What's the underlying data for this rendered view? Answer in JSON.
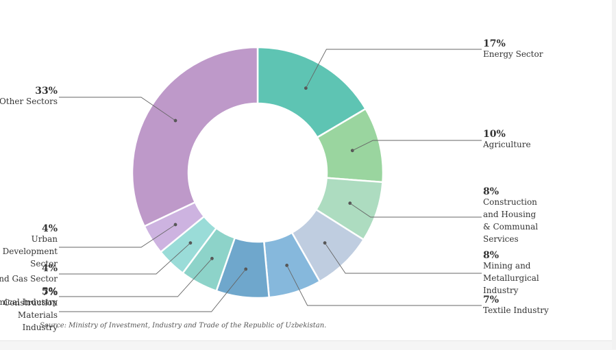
{
  "chart_data": {
    "type": "pie",
    "donut": true,
    "source": "Source: Ministry of Investment, Industry and Trade of the Republic of Uzbekistan.",
    "slices": [
      {
        "label": "Energy Sector",
        "value": 17,
        "pct_label": "17%",
        "color": "#5ec4b3"
      },
      {
        "label": "Agriculture",
        "value": 10,
        "pct_label": "10%",
        "color": "#9ad59f"
      },
      {
        "label": "Construction and Housing & Communal Services",
        "value": 8,
        "pct_label": "8%",
        "color": "#addcc0"
      },
      {
        "label": "Mining and Metallurgical Industry",
        "value": 8,
        "pct_label": "8%",
        "color": "#bfcde0"
      },
      {
        "label": "Textile Industry",
        "value": 7,
        "pct_label": "7%",
        "color": "#86b8dc"
      },
      {
        "label": "Construction Materials Industry",
        "value": 7,
        "pct_label": "7%",
        "color": "#6fa7cc"
      },
      {
        "label": "Chemical Industry",
        "value": 5,
        "pct_label": "5%",
        "color": "#8dd3c9"
      },
      {
        "label": "Oil and Gas Sector",
        "value": 4,
        "pct_label": "4%",
        "color": "#9adcd8"
      },
      {
        "label": "Urban Development Sector",
        "value": 4,
        "pct_label": "4%",
        "color": "#cdb3e0"
      },
      {
        "label": "Other Sectors",
        "value": 33,
        "pct_label": "33%",
        "color": "#be99c9"
      }
    ]
  }
}
